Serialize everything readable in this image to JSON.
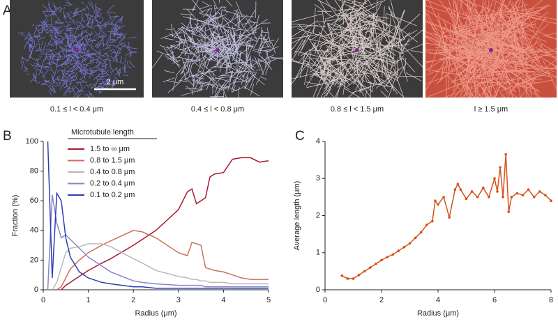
{
  "panel_a": {
    "label": "A",
    "captions": [
      "0.1 ≤ l < 0.4 μm",
      "0.4 ≤ l < 0.8 μm",
      "0.8 ≤ l < 1.5 μm",
      "l ≥ 1.5 μm"
    ],
    "scale_bar": "2 μm"
  },
  "chart_data": [
    {
      "type": "line",
      "panel": "B",
      "xlabel": "Radius (μm)",
      "ylabel": "Fraction (%)",
      "legend_title": "Microtubule length",
      "x": [
        0.1,
        0.2,
        0.3,
        0.4,
        0.5,
        0.6,
        0.8,
        1.0,
        1.3,
        1.5,
        2.0,
        2.2,
        2.5,
        3.0,
        3.2,
        3.3,
        3.4,
        3.5,
        3.6,
        3.7,
        3.8,
        4.0,
        4.2,
        4.4,
        4.6,
        4.8,
        5.0
      ],
      "xlim": [
        0,
        5
      ],
      "xticks": [
        0,
        1,
        2,
        3,
        4,
        5
      ],
      "ylim": [
        0,
        100
      ],
      "yticks": [
        0,
        20,
        40,
        60,
        80,
        100
      ],
      "series": [
        {
          "name": "1.5 to ∞ μm",
          "color": "#a8192e",
          "values": [
            null,
            null,
            null,
            0,
            3,
            5,
            9,
            13,
            18,
            21,
            30,
            34,
            40,
            54,
            66,
            68,
            58,
            60,
            62,
            76,
            78,
            79,
            88,
            89,
            89,
            86,
            87
          ]
        },
        {
          "name": "0.8 to 1.5 μm",
          "color": "#cf6f5e",
          "values": [
            null,
            null,
            0,
            2,
            8,
            14,
            20,
            25,
            30,
            33,
            40,
            39,
            35,
            25,
            23,
            32,
            31,
            30,
            15,
            14,
            13,
            12,
            10,
            8,
            7,
            7,
            7
          ]
        },
        {
          "name": "0.4 to 0.8 μm",
          "color": "#b9b9b9",
          "values": [
            null,
            0,
            5,
            15,
            25,
            28,
            29,
            31,
            31,
            29,
            21,
            18,
            13,
            9,
            8,
            7,
            7,
            6,
            6,
            5,
            5,
            5,
            4,
            4,
            4,
            4,
            4
          ]
        },
        {
          "name": "0.2 to 0.4 μm",
          "color": "#8a84c8",
          "values": [
            0,
            64,
            45,
            35,
            37,
            34,
            28,
            22,
            16,
            12,
            6,
            5,
            4,
            3,
            3,
            3,
            3,
            3,
            2,
            2,
            2,
            2,
            2,
            2,
            2,
            2,
            2
          ]
        },
        {
          "name": "0.1 to 0.2 μm",
          "color": "#2a3fb0",
          "values": [
            100,
            8,
            65,
            60,
            35,
            22,
            12,
            8,
            5,
            4,
            2,
            2,
            1,
            1,
            1,
            1,
            1,
            1,
            1,
            1,
            1,
            1,
            1,
            1,
            1,
            1,
            1
          ]
        }
      ]
    },
    {
      "type": "line",
      "panel": "C",
      "xlabel": "Radius (μm)",
      "ylabel": "Average length (μm)",
      "markers": true,
      "x": [
        0.6,
        0.8,
        1.0,
        1.2,
        1.4,
        1.6,
        1.8,
        2.0,
        2.2,
        2.4,
        2.6,
        2.8,
        3.0,
        3.2,
        3.4,
        3.6,
        3.8,
        3.9,
        4.0,
        4.2,
        4.4,
        4.6,
        4.7,
        4.8,
        5.0,
        5.2,
        5.4,
        5.6,
        5.8,
        6.0,
        6.1,
        6.2,
        6.3,
        6.4,
        6.5,
        6.6,
        6.8,
        7.0,
        7.2,
        7.4,
        7.6,
        7.8,
        8.0
      ],
      "xlim": [
        0,
        8
      ],
      "xticks": [
        0,
        2,
        4,
        6,
        8
      ],
      "ylim": [
        0,
        4
      ],
      "yticks": [
        0,
        1,
        2,
        3,
        4
      ],
      "series": [
        {
          "color": "#d4521b",
          "values": [
            0.38,
            0.3,
            0.3,
            0.4,
            0.5,
            0.6,
            0.7,
            0.8,
            0.88,
            0.95,
            1.05,
            1.15,
            1.25,
            1.4,
            1.55,
            1.75,
            1.85,
            2.4,
            2.3,
            2.5,
            1.95,
            2.7,
            2.85,
            2.7,
            2.45,
            2.65,
            2.5,
            2.75,
            2.5,
            3.0,
            2.65,
            3.3,
            2.5,
            3.65,
            2.1,
            2.5,
            2.6,
            2.55,
            2.7,
            2.5,
            2.65,
            2.55,
            2.4
          ]
        }
      ]
    }
  ]
}
